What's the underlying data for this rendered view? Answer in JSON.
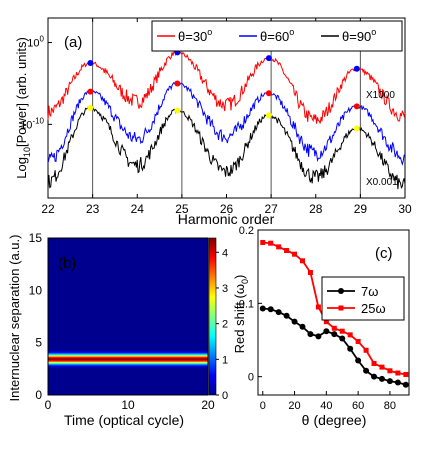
{
  "chart_data": [
    {
      "panel": "(a)",
      "type": "line",
      "xlabel": "Harmonic order",
      "ylabel": "Log",
      "ylabel_sub": "10",
      "ylabel_rest": "[Power] (arb. units)",
      "xlim": [
        22,
        30
      ],
      "xticks": [
        "22",
        "23",
        "24",
        "25",
        "26",
        "27",
        "28",
        "29",
        "30"
      ],
      "yticks": [
        {
          "base": "10",
          "exp": "0",
          "value": 0
        },
        {
          "base": "10",
          "exp": "-10",
          "value": -10
        }
      ],
      "ylim": [
        -19,
        3
      ],
      "vlines": [
        23,
        25,
        27,
        29
      ],
      "legend": [
        {
          "symbol": "θ",
          "rest": "=30",
          "sup": "o",
          "color": "#ff0000"
        },
        {
          "symbol": "θ",
          "rest": "=60",
          "sup": "o",
          "color": "#0000ff"
        },
        {
          "symbol": "θ",
          "rest": "=90",
          "sup": "o",
          "color": "#000000"
        }
      ],
      "annotations": {
        "top": "X1000",
        "bottom": "X0.001"
      },
      "series": [
        {
          "color": "#ff0000",
          "offset": -5.0,
          "peaks": [
            [
              22.95,
              -2.5
            ],
            [
              24.9,
              -1.2
            ],
            [
              26.95,
              -1.9
            ],
            [
              28.92,
              -3.2
            ]
          ],
          "valleys": [
            [
              22.0,
              -8.5
            ],
            [
              24.0,
              -7.2
            ],
            [
              26.0,
              -7.6
            ],
            [
              28.0,
              -9.5
            ],
            [
              30.0,
              -9.0
            ]
          ]
        },
        {
          "color": "#0000ff",
          "offset": -9.5,
          "peaks": [
            [
              22.95,
              -6.0
            ],
            [
              24.9,
              -5.0
            ],
            [
              26.95,
              -6.2
            ],
            [
              28.92,
              -7.8
            ]
          ],
          "valleys": [
            [
              22.0,
              -14.5
            ],
            [
              24.0,
              -11.8
            ],
            [
              26.0,
              -11.5
            ],
            [
              28.0,
              -13.5
            ],
            [
              30.0,
              -14.0
            ]
          ]
        },
        {
          "color": "#000000",
          "offset": -14.0,
          "peaks": [
            [
              22.95,
              -8.0
            ],
            [
              24.9,
              -8.3
            ],
            [
              26.95,
              -8.9
            ],
            [
              28.92,
              -10.5
            ]
          ],
          "valleys": [
            [
              22.0,
              -17.0
            ],
            [
              24.0,
              -15.0
            ],
            [
              26.0,
              -15.8
            ],
            [
              28.0,
              -16.5
            ],
            [
              30.0,
              -17.5
            ]
          ]
        }
      ],
      "markers": [
        {
          "x": 22.95,
          "y": -2.5,
          "color": "#0000ff"
        },
        {
          "x": 24.9,
          "y": -1.2,
          "color": "#0000ff"
        },
        {
          "x": 26.95,
          "y": -1.9,
          "color": "#0000ff"
        },
        {
          "x": 28.92,
          "y": -3.2,
          "color": "#0000ff"
        },
        {
          "x": 22.95,
          "y": -6.0,
          "color": "#ff0000"
        },
        {
          "x": 24.9,
          "y": -5.0,
          "color": "#ff0000"
        },
        {
          "x": 26.95,
          "y": -6.2,
          "color": "#ff0000"
        },
        {
          "x": 28.92,
          "y": -7.8,
          "color": "#ff0000"
        },
        {
          "x": 22.95,
          "y": -8.0,
          "color": "#ffff00"
        },
        {
          "x": 24.9,
          "y": -8.3,
          "color": "#ffff00"
        },
        {
          "x": 26.95,
          "y": -8.9,
          "color": "#ffff00"
        },
        {
          "x": 28.92,
          "y": -10.5,
          "color": "#ffff00"
        }
      ]
    },
    {
      "panel": "(b)",
      "type": "heatmap",
      "xlabel": "Time (optical cycle)",
      "ylabel": "Internuclear separation (a.u.)",
      "xlim": [
        0,
        20
      ],
      "ylim": [
        0,
        15
      ],
      "xticks": [
        "0",
        "10",
        "20"
      ],
      "yticks": [
        "0",
        "5",
        "10",
        "15"
      ],
      "band_center": 3.45,
      "band_width": 0.45,
      "peak_value": 4.3,
      "colorbar_ticks": [
        "0",
        "1",
        "2",
        "3",
        "4"
      ],
      "colorbar_range": [
        0,
        4.4
      ]
    },
    {
      "panel": "(c)",
      "type": "line",
      "xlabel": "(degree)",
      "xlabel_symbol": "θ",
      "ylabel": "Red shift (",
      "ylabel_symbol": "ω",
      "ylabel_sub": "0",
      "ylabel_end": ")",
      "xlim": [
        -3,
        92
      ],
      "ylim": [
        -0.025,
        0.2
      ],
      "xticks": [
        "0",
        "20",
        "40",
        "60",
        "80"
      ],
      "yticks": [
        "0",
        "0.1",
        "0.2"
      ],
      "legend": [
        {
          "label": "7",
          "symbol": "ω",
          "color": "#000000",
          "marker": "circle"
        },
        {
          "label": "25",
          "symbol": "ω",
          "color": "#ff0000",
          "marker": "square"
        }
      ],
      "series": [
        {
          "name": "7ω",
          "color": "#000000",
          "marker": "circle",
          "x": [
            0,
            5,
            10,
            15,
            20,
            25,
            30,
            35,
            40,
            45,
            50,
            55,
            60,
            65,
            70,
            75,
            80,
            85,
            90
          ],
          "y": [
            0.093,
            0.092,
            0.088,
            0.083,
            0.075,
            0.068,
            0.058,
            0.055,
            0.062,
            0.058,
            0.052,
            0.038,
            0.022,
            0.008,
            0.0,
            -0.003,
            -0.006,
            -0.008,
            -0.011
          ]
        },
        {
          "name": "25ω",
          "color": "#ff0000",
          "marker": "square",
          "x": [
            0,
            5,
            10,
            15,
            20,
            25,
            30,
            35,
            40,
            45,
            50,
            55,
            60,
            65,
            70,
            75,
            80,
            85,
            90
          ],
          "y": [
            0.183,
            0.182,
            0.177,
            0.172,
            0.167,
            0.158,
            0.142,
            0.095,
            0.075,
            0.066,
            0.062,
            0.057,
            0.048,
            0.036,
            0.018,
            0.013,
            0.008,
            0.005,
            0.003
          ]
        }
      ]
    }
  ]
}
